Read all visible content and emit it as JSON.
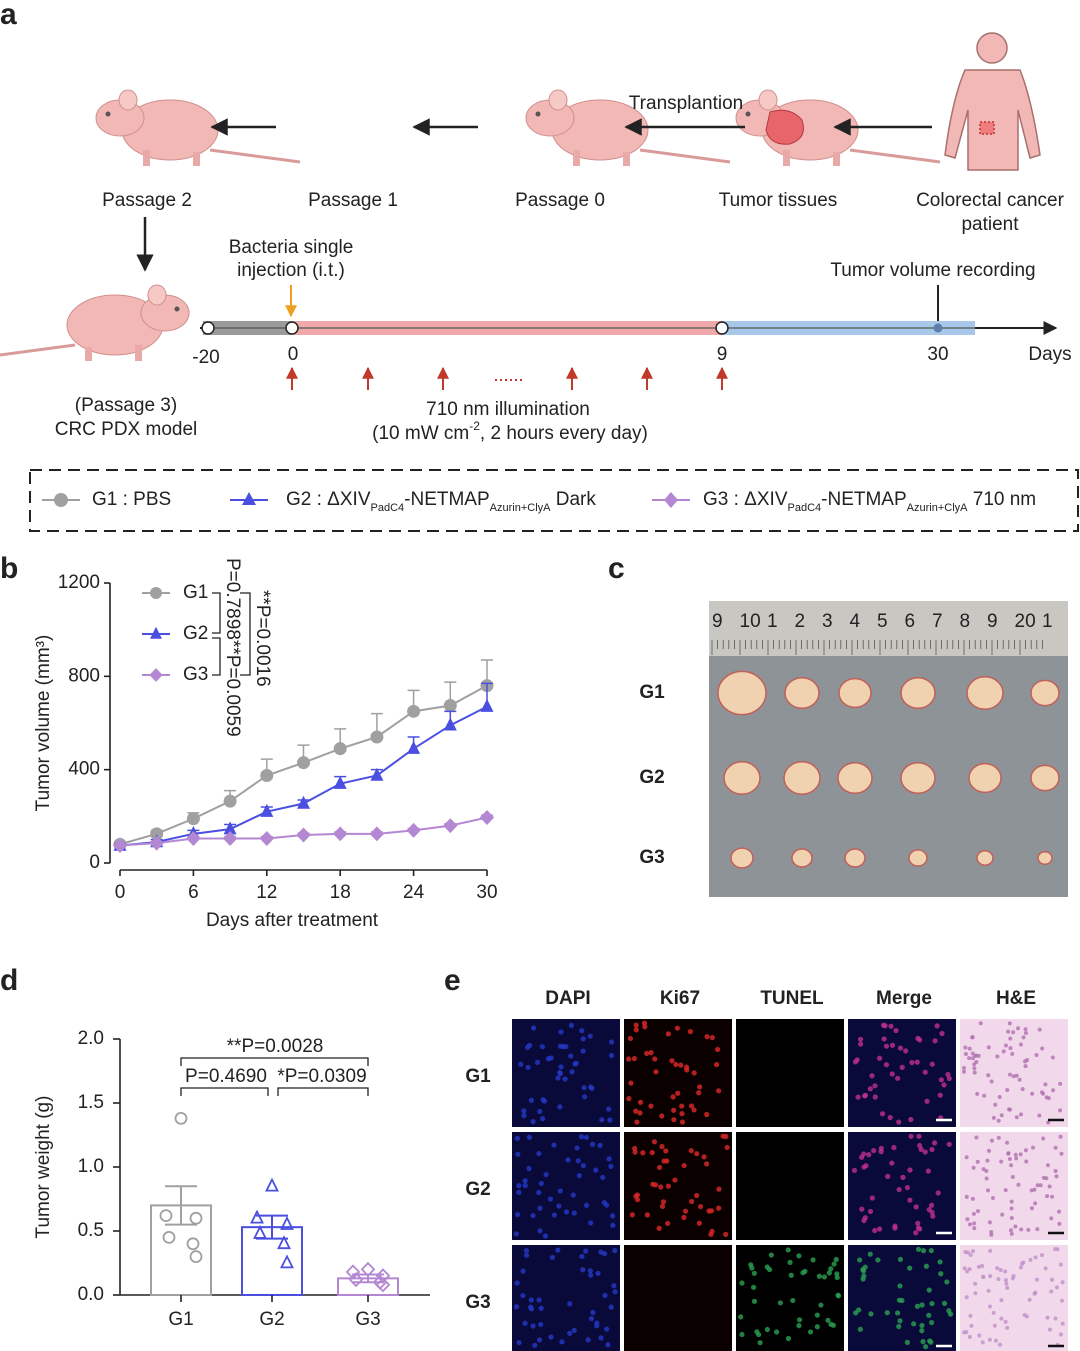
{
  "panel_labels": [
    "a",
    "b",
    "c",
    "d",
    "e"
  ],
  "schematic": {
    "transplantion": "Transplantion",
    "passage_2": "Passage 2",
    "passage_1": "Passage 1",
    "passage_0": "Passage 0",
    "tumor_tissues": "Tumor tissues",
    "patient": [
      "Colorectal cancer",
      "patient"
    ],
    "injection": [
      "Bacteria single",
      "injection (i.t.)"
    ],
    "recording": "Tumor volume recording",
    "timeline_labels": [
      "-20",
      "0",
      "9",
      "30",
      "Days"
    ],
    "model": [
      "(Passage 3)",
      "CRC PDX model"
    ],
    "illumination": "710 nm illumination",
    "illumination_detail": [
      "(10 mW cm",
      "-2",
      ", 2 hours every day)"
    ]
  },
  "legend": {
    "g1": "G1 : PBS",
    "g2": [
      "G2 : ΔXIV",
      "PadC4",
      "-NETMAP",
      "Azurin+ClyA",
      " Dark"
    ],
    "g3": [
      "G3 : ΔXIV",
      "PadC4",
      "-NETMAP",
      "Azurin+ClyA",
      " 710 nm"
    ]
  },
  "chart_data": [
    {
      "type": "line",
      "xlabel": "Days after treatment",
      "ylabel": "Tumor volume (mm³)",
      "x": [
        0,
        3,
        6,
        9,
        12,
        15,
        18,
        21,
        24,
        27,
        30
      ],
      "xlim": [
        0,
        30
      ],
      "xticks": [
        0,
        6,
        12,
        18,
        24,
        30
      ],
      "ylim": [
        0,
        1200
      ],
      "yticks": [
        0,
        400,
        800,
        1200
      ],
      "series": [
        {
          "name": "G1",
          "color": "#a0a0a0",
          "marker": "circle",
          "values": [
            80,
            125,
            190,
            265,
            375,
            430,
            490,
            540,
            650,
            675,
            760
          ],
          "errors": [
            10,
            15,
            25,
            45,
            70,
            75,
            85,
            100,
            90,
            100,
            110
          ]
        },
        {
          "name": "G2",
          "color": "#4a4fe0",
          "marker": "triangle",
          "values": [
            75,
            90,
            125,
            145,
            220,
            255,
            340,
            375,
            490,
            590,
            670
          ],
          "errors": [
            8,
            10,
            15,
            20,
            20,
            15,
            30,
            25,
            50,
            60,
            100
          ]
        },
        {
          "name": "G3",
          "color": "#b487d2",
          "marker": "diamond",
          "values": [
            75,
            85,
            105,
            105,
            105,
            120,
            125,
            125,
            140,
            160,
            195
          ],
          "errors": [
            5,
            5,
            8,
            8,
            8,
            8,
            8,
            8,
            8,
            8,
            10
          ]
        }
      ],
      "annotations": [
        "P=0.7898",
        "**P=0.0016",
        "**P=0.0059"
      ]
    },
    {
      "type": "bar",
      "ylabel": "Tumor weight (g)",
      "categories": [
        "G1",
        "G2",
        "G3"
      ],
      "values": [
        0.7,
        0.53,
        0.13
      ],
      "errors": [
        0.15,
        0.09,
        0.03
      ],
      "colors": [
        "#a0a0a0",
        "#4a4fe0",
        "#b487d2"
      ],
      "markers": [
        "circle",
        "triangle",
        "diamond"
      ],
      "points": [
        [
          1.38,
          0.62,
          0.6,
          0.45,
          0.4,
          0.3
        ],
        [
          0.85,
          0.6,
          0.55,
          0.48,
          0.4,
          0.25
        ],
        [
          0.2,
          0.18,
          0.15,
          0.12,
          0.1,
          0.08
        ]
      ],
      "ylim": [
        0,
        2
      ],
      "yticks": [
        {
          "value": 0,
          "label": "0.0"
        },
        0.5,
        {
          "value": 1,
          "label": "1.0"
        },
        1.5,
        {
          "value": 2,
          "label": "2.0"
        }
      ],
      "annotations": [
        "**P=0.0028",
        "P=0.4690",
        "*P=0.0309"
      ]
    }
  ],
  "photo": {
    "rows": [
      "G1",
      "G2",
      "G3"
    ],
    "ruler": [
      "9",
      "10",
      "1",
      "2",
      "3",
      "4",
      "5",
      "6",
      "7",
      "8",
      "9",
      "20",
      "1"
    ]
  },
  "staining": {
    "columns": [
      "DAPI",
      "Ki67",
      "TUNEL",
      "Merge",
      "H&E"
    ],
    "rows": [
      "G1",
      "G2",
      "G3"
    ]
  }
}
